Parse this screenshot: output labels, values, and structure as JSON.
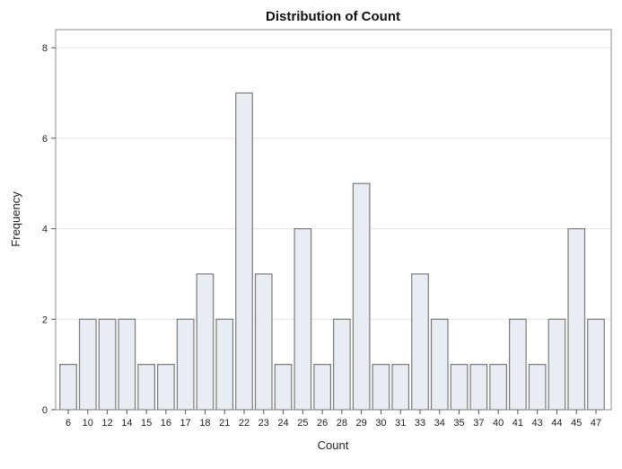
{
  "chart_data": {
    "type": "bar",
    "title": "Distribution of Count",
    "xlabel": "Count",
    "ylabel": "Frequency",
    "categories": [
      "6",
      "10",
      "12",
      "14",
      "15",
      "16",
      "17",
      "18",
      "21",
      "22",
      "23",
      "24",
      "25",
      "26",
      "28",
      "29",
      "30",
      "31",
      "33",
      "34",
      "35",
      "37",
      "40",
      "41",
      "43",
      "44",
      "45",
      "47"
    ],
    "values": [
      1,
      2,
      2,
      2,
      1,
      1,
      2,
      3,
      2,
      7,
      3,
      1,
      4,
      1,
      2,
      5,
      1,
      1,
      3,
      2,
      1,
      1,
      1,
      2,
      1,
      2,
      4,
      2
    ],
    "ylim": [
      0,
      8.4
    ],
    "yticks": [
      0,
      2,
      4,
      6,
      8
    ],
    "grid": true,
    "colors": {
      "bar_fill": "#e8ecf3",
      "bar_edge": "#7a7a7a"
    }
  }
}
